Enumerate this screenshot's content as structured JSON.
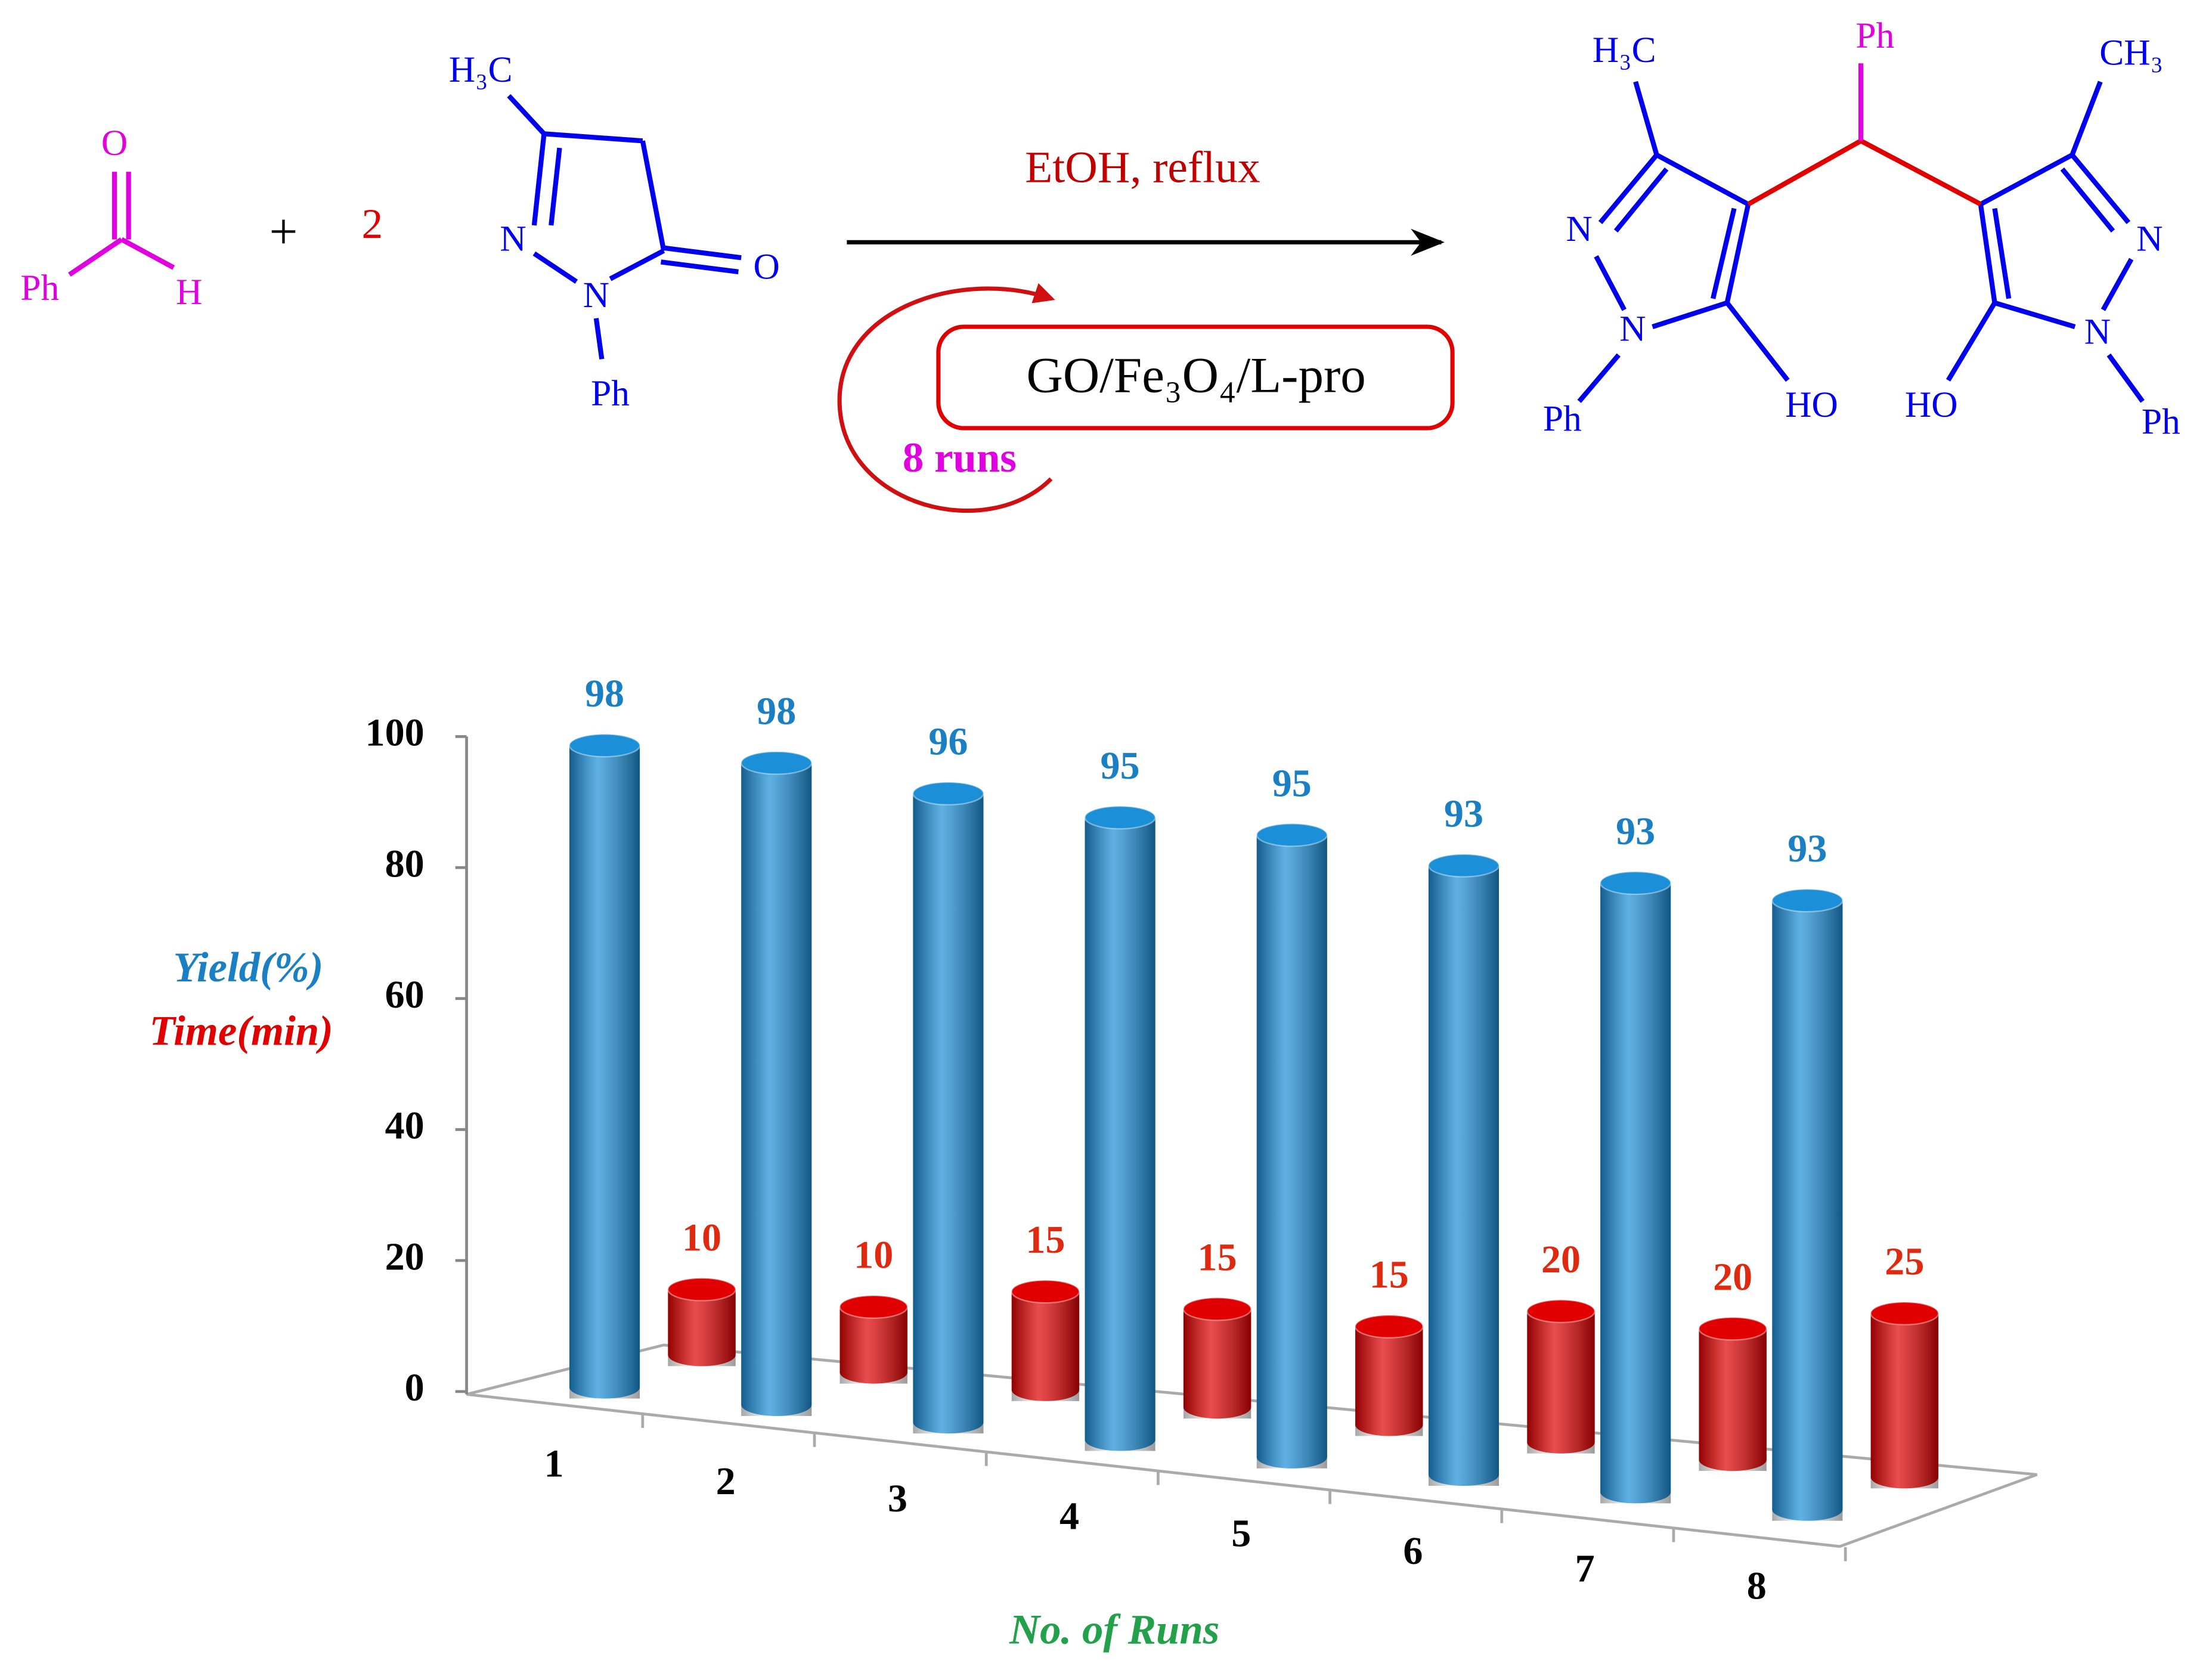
{
  "scheme": {
    "labels": [
      "O",
      "Ph",
      "H",
      "+",
      "2",
      "H₃C",
      "N",
      "N",
      "O",
      "Ph",
      "EtOH, reflux",
      "GO/Fe₃O₄/L-pro",
      "8 runs",
      "H₃C",
      "Ph",
      "CH₃",
      "N",
      "N",
      "Ph",
      "HO",
      "HO",
      "N",
      "N",
      "Ph"
    ]
  },
  "chart_data": {
    "type": "bar",
    "categories": [
      "1",
      "2",
      "3",
      "4",
      "5",
      "6",
      "7",
      "8"
    ],
    "series": [
      {
        "name": "Yield(%)",
        "color": "#1b8fd8",
        "values": [
          98,
          98,
          96,
          95,
          95,
          93,
          93,
          93
        ]
      },
      {
        "name": "Time(min)",
        "color": "#e00000",
        "values": [
          10,
          10,
          15,
          15,
          15,
          20,
          20,
          25
        ]
      }
    ],
    "xlabel": "No. of Runs",
    "ylim": [
      0,
      100
    ],
    "yticks": [
      0,
      20,
      40,
      60,
      80,
      100
    ]
  }
}
